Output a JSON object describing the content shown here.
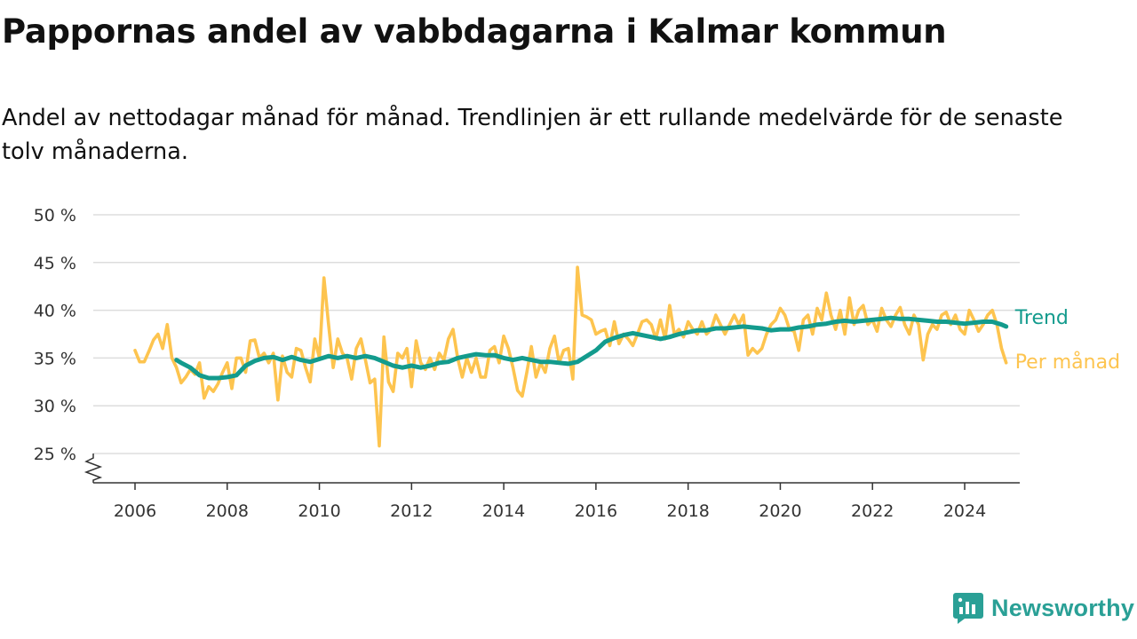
{
  "title": "Pappornas andel av vabbdagarna i Kalmar kommun",
  "subtitle": "Andel av nettodagar månad för månad. Trendlinjen är ett rullande medelvärde för de senaste tolv månaderna.",
  "brand": "Newsworthy",
  "chart_data": {
    "type": "line",
    "x_unit": "year",
    "x_ticks": [
      2006,
      2008,
      2010,
      2012,
      2014,
      2016,
      2018,
      2020,
      2022,
      2024
    ],
    "x_tick_labels": [
      "2006",
      "2008",
      "2010",
      "2012",
      "2014",
      "2016",
      "2018",
      "2020",
      "2022",
      "2024"
    ],
    "y_ticks": [
      25,
      30,
      35,
      40,
      45,
      50
    ],
    "y_tick_labels": [
      "25 %",
      "30 %",
      "35 %",
      "40 %",
      "45 %",
      "50 %"
    ],
    "xlim": [
      2005.8,
      2025.2
    ],
    "ylim": [
      22,
      50
    ],
    "y_axis_break": true,
    "grid": true,
    "colors": {
      "trend": "#139b8d",
      "monthly": "#fdc44f",
      "grid": "#dddddd",
      "axis": "#333333"
    },
    "series": [
      {
        "name": "Per månad",
        "color": "#fdc44f",
        "points": [
          [
            2006.0,
            35.8
          ],
          [
            2006.1,
            34.6
          ],
          [
            2006.2,
            34.6
          ],
          [
            2006.3,
            35.7
          ],
          [
            2006.4,
            36.9
          ],
          [
            2006.5,
            37.5
          ],
          [
            2006.6,
            36.0
          ],
          [
            2006.7,
            38.5
          ],
          [
            2006.8,
            35.0
          ],
          [
            2006.9,
            34.0
          ],
          [
            2007.0,
            32.4
          ],
          [
            2007.1,
            33.0
          ],
          [
            2007.2,
            33.8
          ],
          [
            2007.3,
            33.3
          ],
          [
            2007.4,
            34.5
          ],
          [
            2007.5,
            30.8
          ],
          [
            2007.6,
            32.0
          ],
          [
            2007.7,
            31.5
          ],
          [
            2007.8,
            32.3
          ],
          [
            2007.9,
            33.5
          ],
          [
            2008.0,
            34.5
          ],
          [
            2008.1,
            31.8
          ],
          [
            2008.2,
            35.0
          ],
          [
            2008.3,
            35.0
          ],
          [
            2008.4,
            33.5
          ],
          [
            2008.5,
            36.8
          ],
          [
            2008.6,
            36.9
          ],
          [
            2008.7,
            35.0
          ],
          [
            2008.8,
            35.5
          ],
          [
            2008.9,
            34.5
          ],
          [
            2009.0,
            35.5
          ],
          [
            2009.1,
            30.6
          ],
          [
            2009.2,
            35.2
          ],
          [
            2009.3,
            33.5
          ],
          [
            2009.4,
            33.0
          ],
          [
            2009.5,
            36.0
          ],
          [
            2009.6,
            35.8
          ],
          [
            2009.7,
            34.0
          ],
          [
            2009.8,
            32.5
          ],
          [
            2009.9,
            37.0
          ],
          [
            2010.0,
            35.0
          ],
          [
            2010.1,
            43.4
          ],
          [
            2010.2,
            38.5
          ],
          [
            2010.3,
            34.0
          ],
          [
            2010.4,
            37.0
          ],
          [
            2010.5,
            35.5
          ],
          [
            2010.6,
            35.0
          ],
          [
            2010.7,
            32.8
          ],
          [
            2010.8,
            36.0
          ],
          [
            2010.9,
            37.0
          ],
          [
            2011.0,
            34.8
          ],
          [
            2011.1,
            32.4
          ],
          [
            2011.2,
            32.8
          ],
          [
            2011.3,
            25.8
          ],
          [
            2011.4,
            37.2
          ],
          [
            2011.5,
            32.5
          ],
          [
            2011.6,
            31.5
          ],
          [
            2011.7,
            35.5
          ],
          [
            2011.8,
            35.0
          ],
          [
            2011.9,
            36.0
          ],
          [
            2012.0,
            32.0
          ],
          [
            2012.1,
            36.8
          ],
          [
            2012.2,
            34.5
          ],
          [
            2012.3,
            33.8
          ],
          [
            2012.4,
            35.0
          ],
          [
            2012.5,
            33.8
          ],
          [
            2012.6,
            35.5
          ],
          [
            2012.7,
            34.8
          ],
          [
            2012.8,
            37.0
          ],
          [
            2012.9,
            38.0
          ],
          [
            2013.0,
            35.0
          ],
          [
            2013.1,
            33.0
          ],
          [
            2013.2,
            35.0
          ],
          [
            2013.3,
            33.5
          ],
          [
            2013.4,
            35.0
          ],
          [
            2013.5,
            33.0
          ],
          [
            2013.6,
            33.0
          ],
          [
            2013.7,
            35.8
          ],
          [
            2013.8,
            36.2
          ],
          [
            2013.9,
            34.5
          ],
          [
            2014.0,
            37.3
          ],
          [
            2014.1,
            36.0
          ],
          [
            2014.2,
            34.0
          ],
          [
            2014.3,
            31.6
          ],
          [
            2014.4,
            31.0
          ],
          [
            2014.5,
            33.5
          ],
          [
            2014.6,
            36.2
          ],
          [
            2014.7,
            33.0
          ],
          [
            2014.8,
            34.5
          ],
          [
            2014.9,
            33.5
          ],
          [
            2015.0,
            36.0
          ],
          [
            2015.1,
            37.3
          ],
          [
            2015.2,
            34.5
          ],
          [
            2015.3,
            35.8
          ],
          [
            2015.4,
            36.0
          ],
          [
            2015.5,
            32.8
          ],
          [
            2015.6,
            44.5
          ],
          [
            2015.7,
            39.5
          ],
          [
            2015.8,
            39.3
          ],
          [
            2015.9,
            39.0
          ],
          [
            2016.0,
            37.5
          ],
          [
            2016.1,
            37.8
          ],
          [
            2016.2,
            38.0
          ],
          [
            2016.3,
            36.3
          ],
          [
            2016.4,
            38.8
          ],
          [
            2016.5,
            36.5
          ],
          [
            2016.6,
            37.5
          ],
          [
            2016.7,
            37.0
          ],
          [
            2016.8,
            36.3
          ],
          [
            2016.9,
            37.5
          ],
          [
            2017.0,
            38.8
          ],
          [
            2017.1,
            39.0
          ],
          [
            2017.2,
            38.5
          ],
          [
            2017.3,
            37.0
          ],
          [
            2017.4,
            39.0
          ],
          [
            2017.5,
            37.0
          ],
          [
            2017.6,
            40.5
          ],
          [
            2017.7,
            37.5
          ],
          [
            2017.8,
            38.0
          ],
          [
            2017.9,
            37.2
          ],
          [
            2018.0,
            38.8
          ],
          [
            2018.1,
            38.0
          ],
          [
            2018.2,
            37.5
          ],
          [
            2018.3,
            38.8
          ],
          [
            2018.4,
            37.5
          ],
          [
            2018.5,
            38.0
          ],
          [
            2018.6,
            39.5
          ],
          [
            2018.7,
            38.5
          ],
          [
            2018.8,
            37.5
          ],
          [
            2018.9,
            38.5
          ],
          [
            2019.0,
            39.5
          ],
          [
            2019.1,
            38.5
          ],
          [
            2019.2,
            39.5
          ],
          [
            2019.3,
            35.3
          ],
          [
            2019.4,
            36.0
          ],
          [
            2019.5,
            35.5
          ],
          [
            2019.6,
            36.0
          ],
          [
            2019.7,
            37.5
          ],
          [
            2019.8,
            38.5
          ],
          [
            2019.9,
            39.0
          ],
          [
            2020.0,
            40.2
          ],
          [
            2020.1,
            39.5
          ],
          [
            2020.2,
            38.0
          ],
          [
            2020.3,
            37.8
          ],
          [
            2020.4,
            35.8
          ],
          [
            2020.5,
            39.0
          ],
          [
            2020.6,
            39.5
          ],
          [
            2020.7,
            37.5
          ],
          [
            2020.8,
            40.2
          ],
          [
            2020.9,
            39.0
          ],
          [
            2021.0,
            41.8
          ],
          [
            2021.1,
            39.5
          ],
          [
            2021.2,
            38.0
          ],
          [
            2021.3,
            40.0
          ],
          [
            2021.4,
            37.5
          ],
          [
            2021.5,
            41.3
          ],
          [
            2021.6,
            38.5
          ],
          [
            2021.7,
            40.0
          ],
          [
            2021.8,
            40.5
          ],
          [
            2021.9,
            38.5
          ],
          [
            2022.0,
            39.0
          ],
          [
            2022.1,
            37.8
          ],
          [
            2022.2,
            40.2
          ],
          [
            2022.3,
            39.0
          ],
          [
            2022.4,
            38.3
          ],
          [
            2022.5,
            39.5
          ],
          [
            2022.6,
            40.3
          ],
          [
            2022.7,
            38.5
          ],
          [
            2022.8,
            37.5
          ],
          [
            2022.9,
            39.5
          ],
          [
            2023.0,
            38.5
          ],
          [
            2023.1,
            34.8
          ],
          [
            2023.2,
            37.5
          ],
          [
            2023.3,
            38.5
          ],
          [
            2023.4,
            38.0
          ],
          [
            2023.5,
            39.5
          ],
          [
            2023.6,
            39.8
          ],
          [
            2023.7,
            38.5
          ],
          [
            2023.8,
            39.5
          ],
          [
            2023.9,
            38.0
          ],
          [
            2024.0,
            37.5
          ],
          [
            2024.1,
            40.0
          ],
          [
            2024.2,
            39.0
          ],
          [
            2024.3,
            37.8
          ],
          [
            2024.4,
            38.5
          ],
          [
            2024.5,
            39.5
          ],
          [
            2024.6,
            40.0
          ],
          [
            2024.7,
            38.5
          ],
          [
            2024.8,
            36.0
          ],
          [
            2024.9,
            34.5
          ]
        ]
      },
      {
        "name": "Trend",
        "color": "#139b8d",
        "points": [
          [
            2006.9,
            34.8
          ],
          [
            2007.0,
            34.5
          ],
          [
            2007.2,
            34.0
          ],
          [
            2007.4,
            33.2
          ],
          [
            2007.6,
            32.9
          ],
          [
            2007.8,
            32.9
          ],
          [
            2008.0,
            33.0
          ],
          [
            2008.2,
            33.2
          ],
          [
            2008.4,
            34.2
          ],
          [
            2008.6,
            34.7
          ],
          [
            2008.8,
            35.0
          ],
          [
            2009.0,
            35.1
          ],
          [
            2009.2,
            34.8
          ],
          [
            2009.4,
            35.1
          ],
          [
            2009.6,
            34.8
          ],
          [
            2009.8,
            34.6
          ],
          [
            2010.0,
            34.9
          ],
          [
            2010.2,
            35.2
          ],
          [
            2010.4,
            35.0
          ],
          [
            2010.6,
            35.2
          ],
          [
            2010.8,
            35.0
          ],
          [
            2011.0,
            35.2
          ],
          [
            2011.2,
            35.0
          ],
          [
            2011.4,
            34.6
          ],
          [
            2011.6,
            34.2
          ],
          [
            2011.8,
            34.0
          ],
          [
            2012.0,
            34.2
          ],
          [
            2012.2,
            34.0
          ],
          [
            2012.4,
            34.2
          ],
          [
            2012.6,
            34.5
          ],
          [
            2012.8,
            34.6
          ],
          [
            2013.0,
            35.0
          ],
          [
            2013.2,
            35.2
          ],
          [
            2013.4,
            35.4
          ],
          [
            2013.6,
            35.3
          ],
          [
            2013.8,
            35.3
          ],
          [
            2014.0,
            35.0
          ],
          [
            2014.2,
            34.8
          ],
          [
            2014.4,
            35.0
          ],
          [
            2014.6,
            34.8
          ],
          [
            2014.8,
            34.6
          ],
          [
            2015.0,
            34.6
          ],
          [
            2015.2,
            34.5
          ],
          [
            2015.4,
            34.4
          ],
          [
            2015.6,
            34.6
          ],
          [
            2015.8,
            35.2
          ],
          [
            2016.0,
            35.8
          ],
          [
            2016.2,
            36.7
          ],
          [
            2016.4,
            37.1
          ],
          [
            2016.6,
            37.4
          ],
          [
            2016.8,
            37.6
          ],
          [
            2017.0,
            37.4
          ],
          [
            2017.2,
            37.2
          ],
          [
            2017.4,
            37.0
          ],
          [
            2017.6,
            37.2
          ],
          [
            2017.8,
            37.5
          ],
          [
            2018.0,
            37.7
          ],
          [
            2018.2,
            37.9
          ],
          [
            2018.4,
            37.9
          ],
          [
            2018.6,
            38.1
          ],
          [
            2018.8,
            38.1
          ],
          [
            2019.0,
            38.2
          ],
          [
            2019.2,
            38.3
          ],
          [
            2019.4,
            38.2
          ],
          [
            2019.6,
            38.1
          ],
          [
            2019.8,
            37.9
          ],
          [
            2020.0,
            38.0
          ],
          [
            2020.2,
            38.0
          ],
          [
            2020.4,
            38.2
          ],
          [
            2020.6,
            38.3
          ],
          [
            2020.8,
            38.5
          ],
          [
            2021.0,
            38.6
          ],
          [
            2021.2,
            38.8
          ],
          [
            2021.4,
            38.9
          ],
          [
            2021.6,
            38.8
          ],
          [
            2021.8,
            38.9
          ],
          [
            2022.0,
            39.0
          ],
          [
            2022.2,
            39.1
          ],
          [
            2022.4,
            39.2
          ],
          [
            2022.6,
            39.1
          ],
          [
            2022.8,
            39.1
          ],
          [
            2023.0,
            39.0
          ],
          [
            2023.2,
            38.9
          ],
          [
            2023.4,
            38.8
          ],
          [
            2023.6,
            38.8
          ],
          [
            2023.8,
            38.7
          ],
          [
            2024.0,
            38.6
          ],
          [
            2024.2,
            38.7
          ],
          [
            2024.4,
            38.8
          ],
          [
            2024.6,
            38.8
          ],
          [
            2024.8,
            38.5
          ],
          [
            2024.9,
            38.3
          ]
        ]
      }
    ]
  }
}
